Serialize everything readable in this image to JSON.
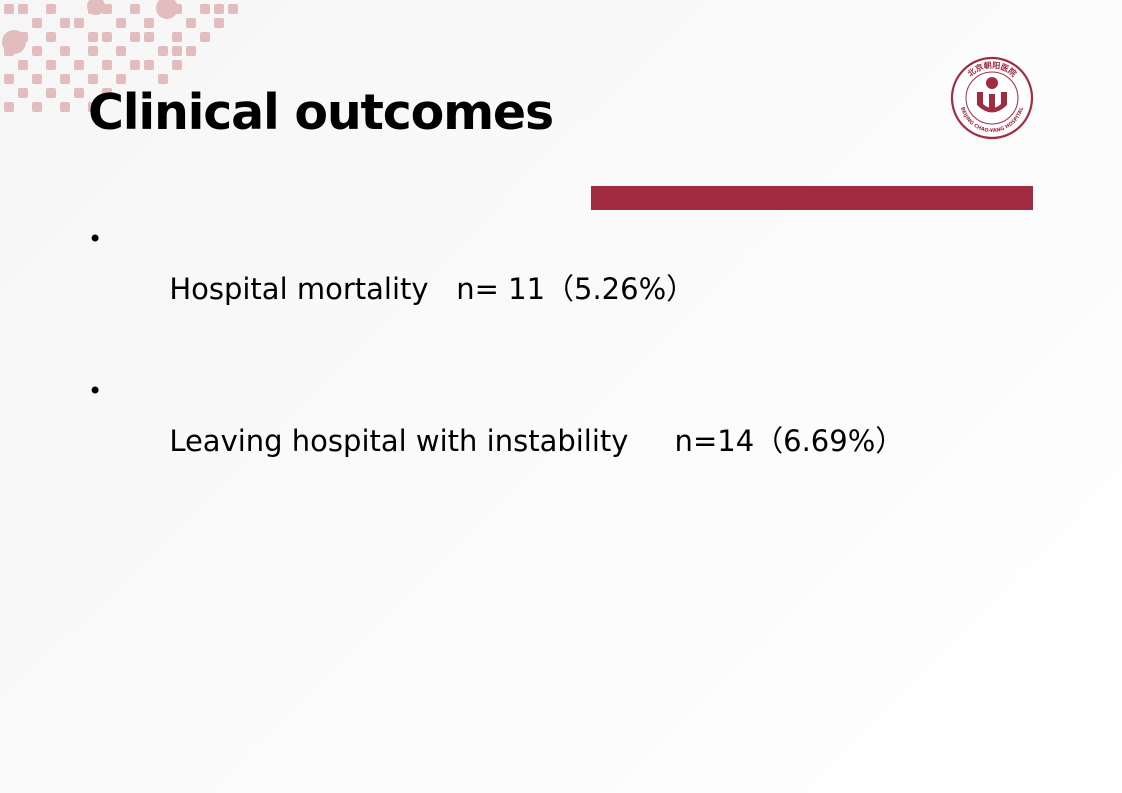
{
  "slide": {
    "title": "Clinical outcomes",
    "accent_color": "#a12c42",
    "decor_color": "#e3bcbe",
    "logo": {
      "icon": "hospital-cross-logo",
      "text_top": "北京朝阳医院",
      "text_bottom": "BEIJING CHAO-YANG HOSPITAL"
    },
    "bullets": [
      {
        "label": "Hospital mortality",
        "stat": "   n= 11（5.26%）"
      },
      {
        "label": "Leaving hospital with instability",
        "stat": "     n=14（6.69%）"
      }
    ]
  }
}
